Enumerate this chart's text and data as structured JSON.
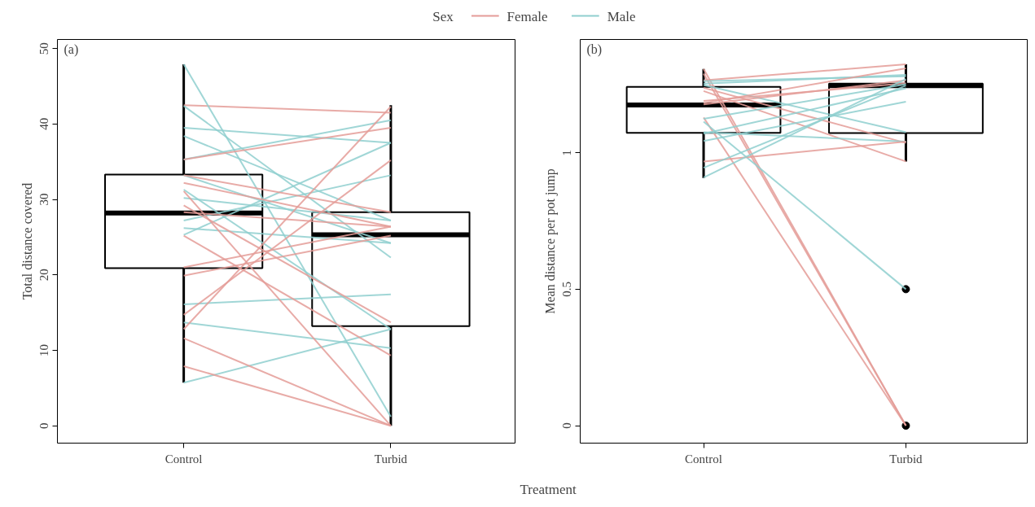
{
  "chart_data": [
    {
      "type": "box",
      "categories": [
        "Control",
        "Turbid"
      ],
      "xlabel": "Treatment",
      "ylabel": "Total distance covered",
      "legend_title": "Sex",
      "legend": "top",
      "grid": false,
      "ylim": [
        -2.3,
        51.2
      ],
      "yticks": [
        0,
        10,
        20,
        30,
        40,
        50
      ],
      "annotations": [
        "(a)"
      ],
      "boxes": [
        {
          "low": 5.7,
          "q1": 20.9,
          "median": 28.2,
          "q3": 33.3,
          "high": 47.9
        },
        {
          "low": 0,
          "q1": 13.2,
          "median": 25.3,
          "q3": 28.3,
          "high": 42.5
        }
      ],
      "series": [
        {
          "type": "line",
          "name": "Female",
          "color": "#e49c98",
          "values": [
            42.5,
            41.5
          ]
        },
        {
          "type": "line",
          "name": "Male",
          "color": "#8fcfcf",
          "values": [
            47.9,
            1.2
          ]
        },
        {
          "type": "line",
          "color": "#8fcfcf",
          "values": [
            42.4,
            22.3
          ]
        },
        {
          "type": "line",
          "color": "#8fcfcf",
          "values": [
            39.5,
            37.5
          ]
        },
        {
          "type": "line",
          "color": "#8fcfcf",
          "values": [
            38.4,
            27.2
          ]
        },
        {
          "type": "line",
          "color": "#8fcfcf",
          "values": [
            35.3,
            40.5
          ]
        },
        {
          "type": "line",
          "color": "#8fcfcf",
          "values": [
            33.2,
            24.2
          ]
        },
        {
          "type": "line",
          "color": "#8fcfcf",
          "values": [
            31.3,
            12.8
          ]
        },
        {
          "type": "line",
          "color": "#8fcfcf",
          "values": [
            30.2,
            27.2
          ]
        },
        {
          "type": "line",
          "color": "#8fcfcf",
          "values": [
            27.2,
            33.2
          ]
        },
        {
          "type": "line",
          "color": "#8fcfcf",
          "values": [
            26.2,
            24.2
          ]
        },
        {
          "type": "line",
          "color": "#8fcfcf",
          "values": [
            25.3,
            37.5
          ]
        },
        {
          "type": "line",
          "color": "#8fcfcf",
          "values": [
            16.1,
            17.4
          ]
        },
        {
          "type": "line",
          "color": "#8fcfcf",
          "values": [
            13.7,
            10.3
          ]
        },
        {
          "type": "line",
          "color": "#8fcfcf",
          "values": [
            5.7,
            12.8
          ]
        },
        {
          "type": "line",
          "color": "#e49c98",
          "values": [
            35.3,
            39.5
          ]
        },
        {
          "type": "line",
          "color": "#e49c98",
          "values": [
            33.2,
            28.3
          ]
        },
        {
          "type": "line",
          "color": "#e49c98",
          "values": [
            32.2,
            26.4
          ]
        },
        {
          "type": "line",
          "color": "#e49c98",
          "values": [
            31.1,
            0
          ]
        },
        {
          "type": "line",
          "color": "#e49c98",
          "values": [
            29.2,
            13.7
          ]
        },
        {
          "type": "line",
          "color": "#e49c98",
          "values": [
            28.3,
            26.4
          ]
        },
        {
          "type": "line",
          "color": "#e49c98",
          "values": [
            25.2,
            9.3
          ]
        },
        {
          "type": "line",
          "color": "#e49c98",
          "values": [
            21.0,
            26.4
          ]
        },
        {
          "type": "line",
          "color": "#e49c98",
          "values": [
            19.9,
            25.2
          ]
        },
        {
          "type": "line",
          "color": "#e49c98",
          "values": [
            14.7,
            35.2
          ]
        },
        {
          "type": "line",
          "color": "#e49c98",
          "values": [
            12.8,
            42.3
          ]
        },
        {
          "type": "line",
          "color": "#e49c98",
          "values": [
            11.6,
            0
          ]
        },
        {
          "type": "line",
          "color": "#e49c98",
          "values": [
            7.9,
            0
          ]
        }
      ]
    },
    {
      "type": "box",
      "categories": [
        "Control",
        "Turbid"
      ],
      "ylabel": "Mean distance per pot jump",
      "grid": false,
      "ylim": [
        -0.064,
        1.415
      ],
      "yticks": [
        0,
        0.5,
        1
      ],
      "annotations": [
        "(b)"
      ],
      "boxes": [
        {
          "low": 0.907,
          "q1": 1.073,
          "median": 1.175,
          "q3": 1.241,
          "high": 1.307
        },
        {
          "low": 0.968,
          "q1": 1.072,
          "median": 1.246,
          "q3": 1.253,
          "high": 1.324,
          "outliers": [
            0.5,
            0
          ]
        }
      ],
      "series": [
        {
          "type": "line",
          "color": "#e49c98",
          "values": [
            1.307,
            0
          ]
        },
        {
          "type": "line",
          "color": "#e49c98",
          "values": [
            1.29,
            0
          ]
        },
        {
          "type": "line",
          "color": "#e49c98",
          "values": [
            1.129,
            0
          ]
        },
        {
          "type": "line",
          "color": "#8fcfcf",
          "values": [
            1.114,
            0.5
          ]
        },
        {
          "type": "line",
          "color": "#e49c98",
          "values": [
            1.265,
            1.324
          ]
        },
        {
          "type": "line",
          "color": "#8fcfcf",
          "values": [
            1.262,
            1.28
          ]
        },
        {
          "type": "line",
          "color": "#8fcfcf",
          "values": [
            1.253,
            1.285
          ]
        },
        {
          "type": "line",
          "color": "#8fcfcf",
          "values": [
            1.248,
            1.075
          ]
        },
        {
          "type": "line",
          "color": "#e49c98",
          "values": [
            1.238,
            1.036
          ]
        },
        {
          "type": "line",
          "color": "#e49c98",
          "values": [
            1.226,
            0.968
          ]
        },
        {
          "type": "line",
          "color": "#e49c98",
          "values": [
            1.182,
            1.309
          ]
        },
        {
          "type": "line",
          "color": "#e49c98",
          "values": [
            1.177,
            1.265
          ]
        },
        {
          "type": "line",
          "color": "#e49c98",
          "values": [
            1.19,
            1.255
          ]
        },
        {
          "type": "line",
          "color": "#8fcfcf",
          "values": [
            1.124,
            1.251
          ]
        },
        {
          "type": "line",
          "color": "#8fcfcf",
          "values": [
            1.07,
            1.236
          ]
        },
        {
          "type": "line",
          "color": "#8fcfcf",
          "values": [
            1.075,
            1.041
          ]
        },
        {
          "type": "line",
          "color": "#8fcfcf",
          "values": [
            1.043,
            1.187
          ]
        },
        {
          "type": "line",
          "color": "#e49c98",
          "values": [
            0.968,
            1.041
          ]
        },
        {
          "type": "line",
          "color": "#8fcfcf",
          "values": [
            0.945,
            1.246
          ]
        },
        {
          "type": "line",
          "color": "#8fcfcf",
          "values": [
            0.909,
            1.27
          ]
        }
      ]
    }
  ]
}
